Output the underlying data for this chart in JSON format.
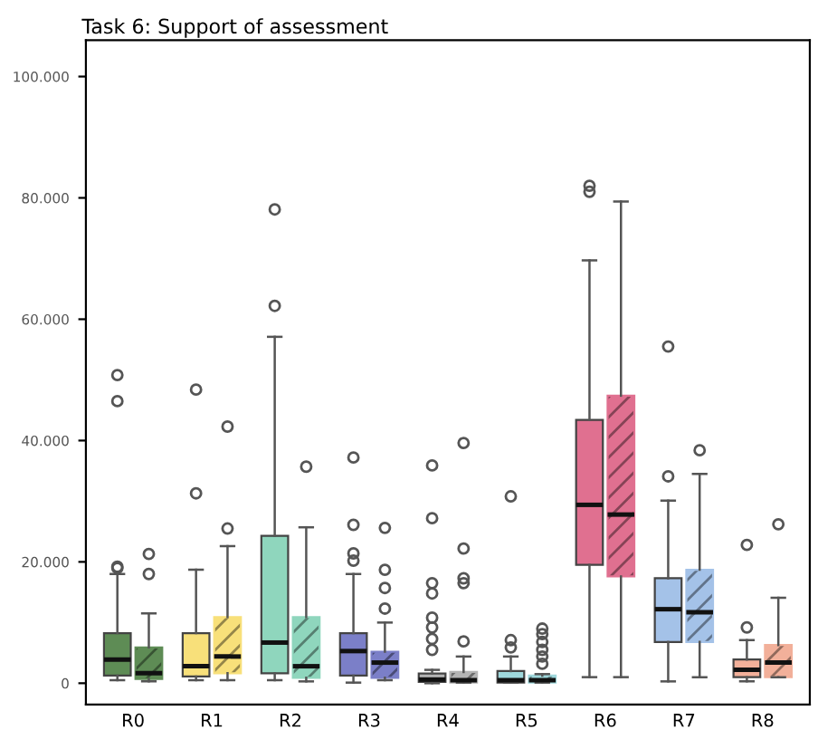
{
  "chart_data": {
    "type": "box",
    "title": "Task 6: Support of assessment",
    "categories": [
      "R0",
      "R1",
      "R2",
      "R3",
      "R4",
      "R5",
      "R6",
      "R7",
      "R8"
    ],
    "ylim": [
      -3500,
      106000
    ],
    "yticks": [
      {
        "value": 0,
        "label": "0"
      },
      {
        "value": 20000,
        "label": "20.000"
      },
      {
        "value": 40000,
        "label": "40.000"
      },
      {
        "value": 60000,
        "label": "60.000"
      },
      {
        "value": 80000,
        "label": "80.000"
      },
      {
        "value": 100000,
        "label": "100.000"
      }
    ],
    "grid": false,
    "series": [
      {
        "colors": [
          "#5e8c55",
          "#f8e07a",
          "#8fd6bd",
          "#7b7fc8",
          "#b4b4b4",
          "#9fd8dc",
          "#e07090",
          "#a4c2e8",
          "#f2b09a"
        ],
        "boxes": [
          {
            "low": 500,
            "q1": 1250,
            "median": 3900,
            "q3": 8250,
            "high": 18000,
            "outliers": [
              19200,
              19000,
              46500,
              50800
            ]
          },
          {
            "low": 500,
            "q1": 1100,
            "median": 2800,
            "q3": 8250,
            "high": 18700,
            "outliers": [
              31300,
              48400
            ]
          },
          {
            "low": 500,
            "q1": 1650,
            "median": 6700,
            "q3": 24300,
            "high": 57100,
            "outliers": [
              62200,
              78100
            ]
          },
          {
            "low": 100,
            "q1": 1250,
            "median": 5300,
            "q3": 8250,
            "high": 18000,
            "outliers": [
              20200,
              21400,
              26100,
              37200
            ]
          },
          {
            "low": 0,
            "q1": 200,
            "median": 600,
            "q3": 1600,
            "high": 2200,
            "outliers": [
              5500,
              7300,
              9200,
              10800,
              14800,
              16500,
              27200,
              35900
            ]
          },
          {
            "low": 100,
            "q1": 100,
            "median": 500,
            "q3": 2000,
            "high": 4400,
            "outliers": [
              5900,
              7100,
              30800
            ]
          },
          {
            "low": 1000,
            "q1": 19500,
            "median": 29400,
            "q3": 43400,
            "high": 69700,
            "outliers": [
              81000,
              82000
            ]
          },
          {
            "low": 300,
            "q1": 6800,
            "median": 12200,
            "q3": 17300,
            "high": 30100,
            "outliers": [
              34100,
              55500
            ]
          },
          {
            "low": 300,
            "q1": 1000,
            "median": 2200,
            "q3": 3900,
            "high": 7100,
            "outliers": [
              9200,
              22800
            ]
          }
        ]
      },
      {
        "colors": [
          "#5e8c55",
          "#f8e07a",
          "#8fd6bd",
          "#7b7fc8",
          "#b4b4b4",
          "#9fd8dc",
          "#e07090",
          "#a4c2e8",
          "#f2b09a"
        ],
        "boxes": [
          {
            "low": 300,
            "q1": 700,
            "median": 1650,
            "q3": 5900,
            "high": 11500,
            "outliers": [
              18000,
              21300
            ]
          },
          {
            "low": 500,
            "q1": 1650,
            "median": 4400,
            "q3": 10900,
            "high": 22600,
            "outliers": [
              25500,
              42300
            ]
          },
          {
            "low": 300,
            "q1": 900,
            "median": 2800,
            "q3": 10900,
            "high": 25700,
            "outliers": [
              35700
            ]
          },
          {
            "low": 500,
            "q1": 900,
            "median": 3400,
            "q3": 5200,
            "high": 10000,
            "outliers": [
              12300,
              15700,
              18700,
              25600
            ]
          },
          {
            "low": 100,
            "q1": 100,
            "median": 500,
            "q3": 1850,
            "high": 4400,
            "outliers": [
              6900,
              16500,
              17300,
              22200,
              39600
            ]
          },
          {
            "low": 100,
            "q1": 100,
            "median": 500,
            "q3": 1250,
            "high": 1500,
            "outliers": [
              3200,
              4400,
              5500,
              6800,
              8100,
              9000
            ]
          },
          {
            "low": 1000,
            "q1": 17600,
            "median": 27800,
            "q3": 47400,
            "high": 79400
          },
          {
            "low": 1000,
            "q1": 6800,
            "median": 11700,
            "q3": 18700,
            "high": 34500,
            "outliers": [
              38400
            ]
          },
          {
            "low": 1000,
            "q1": 1000,
            "median": 3400,
            "q3": 6300,
            "high": 14100,
            "outliers": [
              26200
            ]
          }
        ]
      }
    ]
  }
}
